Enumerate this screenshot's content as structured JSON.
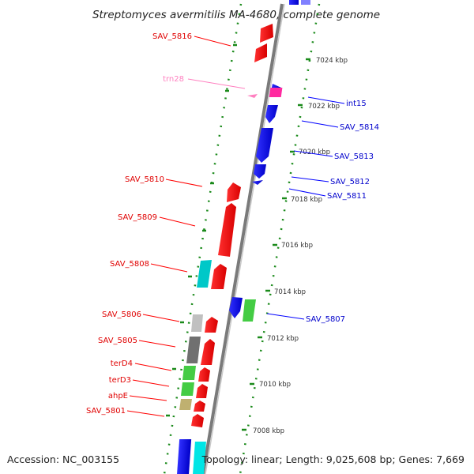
{
  "title": "Streptomyces avermitilis MA-4680, complete genome",
  "footer": {
    "accession": "Accession: NC_003155",
    "topology": "Topology: linear; Length: 9,025,608 bp; Genes: 7,669"
  },
  "colors": {
    "forward": "#ff0000",
    "reverse": "#0000ff",
    "trna": "#ff80c0",
    "integrase": "#ff2aa0",
    "backbone": "#7a7a7a",
    "tick": "#1a8a1a",
    "cyan": "#00c8c8",
    "gray_light": "#c0c0c0",
    "gray_dark": "#707070",
    "green": "#44cc44",
    "olive": "#bfb070"
  },
  "scale_labels": [
    "7024 kbp",
    "7022 kbp",
    "7020 kbp",
    "7018 kbp",
    "7016 kbp",
    "7014 kbp",
    "7012 kbp",
    "7010 kbp",
    "7008 kbp"
  ],
  "left_genes": [
    "SAV_5816",
    "trn28",
    "SAV_5810",
    "SAV_5809",
    "SAV_5808",
    "SAV_5806",
    "SAV_5805",
    "terD4",
    "terD3",
    "ahpE",
    "SAV_5801"
  ],
  "right_genes": [
    "int15",
    "SAV_5814",
    "SAV_5813",
    "SAV_5812",
    "SAV_5811",
    "SAV_5807"
  ]
}
